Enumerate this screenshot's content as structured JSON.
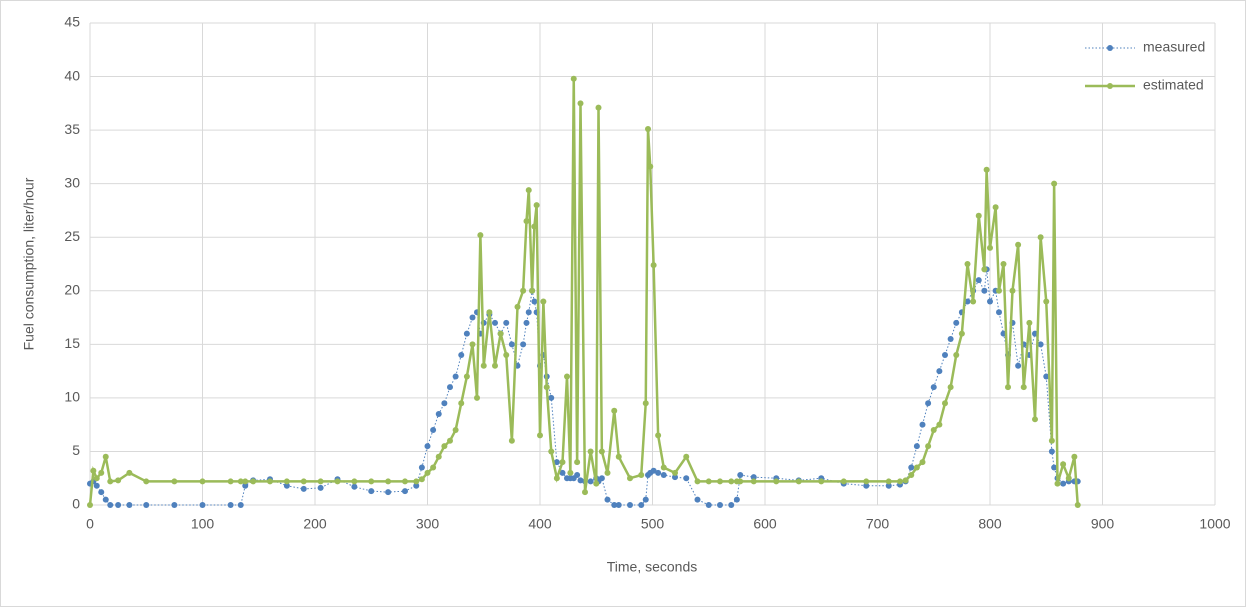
{
  "chart_data": {
    "type": "line",
    "x_label": "Time, seconds",
    "y_label": "Fuel consumption, liter/hour",
    "xlim": [
      0,
      1000
    ],
    "xticks": [
      0,
      100,
      200,
      300,
      400,
      500,
      600,
      700,
      800,
      900,
      1000
    ],
    "ylim": [
      0,
      45
    ],
    "yticks": [
      0,
      5,
      10,
      15,
      20,
      25,
      30,
      35,
      40,
      45
    ],
    "grid": true,
    "legend": "top-right",
    "x": [
      0,
      3,
      6,
      10,
      14,
      18,
      25,
      35,
      50,
      75,
      100,
      125,
      134,
      138,
      145,
      160,
      175,
      190,
      205,
      220,
      235,
      250,
      265,
      280,
      290,
      295,
      300,
      305,
      310,
      315,
      320,
      325,
      330,
      335,
      340,
      344,
      347,
      350,
      355,
      360,
      365,
      370,
      375,
      380,
      385,
      388,
      390,
      393,
      395,
      397,
      400,
      403,
      406,
      410,
      415,
      420,
      424,
      427,
      430,
      433,
      436,
      440,
      445,
      450,
      452,
      455,
      460,
      466,
      470,
      480,
      490,
      494,
      496,
      498,
      501,
      505,
      510,
      520,
      530,
      540,
      550,
      560,
      570,
      575,
      578,
      590,
      610,
      630,
      650,
      670,
      690,
      710,
      720,
      725,
      730,
      735,
      740,
      745,
      750,
      755,
      760,
      765,
      770,
      775,
      780,
      785,
      790,
      795,
      797,
      800,
      805,
      808,
      812,
      816,
      820,
      825,
      830,
      835,
      840,
      845,
      850,
      855,
      857,
      860,
      865,
      870,
      875,
      878
    ],
    "series": [
      {
        "name": "measured",
        "color": "#4f81bd",
        "style": "dotted",
        "values": [
          2.0,
          2.2,
          1.8,
          1.2,
          0.5,
          0,
          0,
          0,
          0,
          0,
          0,
          0,
          0,
          1.8,
          2.3,
          2.4,
          1.8,
          1.5,
          1.6,
          2.4,
          1.7,
          1.3,
          1.2,
          1.3,
          1.8,
          3.5,
          5.5,
          7.0,
          8.5,
          9.5,
          11,
          12,
          14,
          16,
          17.5,
          18,
          16,
          17,
          17.8,
          17,
          16,
          17,
          15,
          13,
          15,
          17,
          18,
          20,
          19,
          18,
          13,
          14,
          12,
          10,
          4,
          3,
          2.5,
          2.5,
          2.5,
          2.8,
          2.3,
          2.2,
          2.2,
          2.5,
          2.2,
          2.5,
          0.5,
          0,
          0,
          0,
          0,
          0.5,
          2.8,
          3.0,
          3.2,
          3.0,
          2.8,
          2.6,
          2.5,
          0.5,
          0,
          0,
          0,
          0.5,
          2.8,
          2.6,
          2.5,
          2.3,
          2.5,
          2.0,
          1.8,
          1.8,
          1.9,
          2.2,
          3.5,
          5.5,
          7.5,
          9.5,
          11,
          12.5,
          14,
          15.5,
          17,
          18,
          19,
          20,
          21,
          20,
          22,
          19,
          20,
          18,
          16,
          14,
          17,
          13,
          15,
          14,
          16,
          15,
          12,
          5,
          3.5,
          2.5,
          2,
          2.2,
          2.2,
          2.2
        ]
      },
      {
        "name": "estimated",
        "color": "#9bbb59",
        "style": "solid",
        "values": [
          0,
          3.2,
          2.5,
          3.0,
          4.5,
          2.2,
          2.3,
          3.0,
          2.2,
          2.2,
          2.2,
          2.2,
          2.2,
          2.2,
          2.2,
          2.2,
          2.2,
          2.2,
          2.2,
          2.2,
          2.2,
          2.2,
          2.2,
          2.2,
          2.2,
          2.4,
          3.0,
          3.5,
          4.5,
          5.5,
          6.0,
          7.0,
          9.5,
          12,
          15,
          10,
          25.2,
          13,
          18,
          13,
          16,
          14,
          6,
          18.5,
          20,
          26.5,
          29.4,
          20,
          26,
          28,
          6.5,
          19,
          11,
          5,
          2.5,
          4,
          12,
          3,
          39.8,
          4,
          37.5,
          1.2,
          5,
          2,
          37.1,
          5,
          3,
          8.8,
          4.5,
          2.5,
          2.8,
          9.5,
          35.1,
          31.6,
          22.4,
          6.5,
          3.5,
          3.0,
          4.5,
          2.2,
          2.2,
          2.2,
          2.2,
          2.2,
          2.2,
          2.2,
          2.2,
          2.2,
          2.2,
          2.2,
          2.2,
          2.2,
          2.2,
          2.3,
          2.8,
          3.5,
          4.0,
          5.5,
          7.0,
          7.5,
          9.5,
          11,
          14,
          16,
          22.5,
          19,
          27,
          22,
          31.3,
          24,
          27.8,
          20,
          22.5,
          11,
          20,
          24.3,
          11,
          17,
          8,
          25,
          19,
          6,
          30,
          2,
          3.8,
          2.5,
          4.5,
          0
        ]
      }
    ]
  }
}
